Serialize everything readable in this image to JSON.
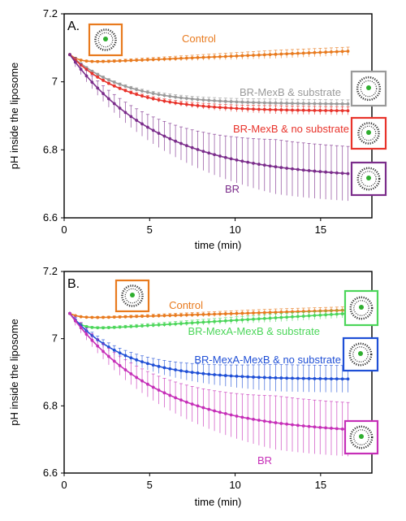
{
  "chart_data": [
    {
      "panel_label": "A.",
      "type": "line",
      "xlabel": "time (min)",
      "ylabel": "pH inside the liposome",
      "xlim": [
        0,
        18
      ],
      "ylim": [
        6.6,
        7.2
      ],
      "xticks": [
        0,
        5,
        10,
        15
      ],
      "yticks": [
        6.6,
        6.8,
        7,
        7.2
      ],
      "x_start": 0.33,
      "x_end": 16.6,
      "start_value": 7.08,
      "series": [
        {
          "name": "Control",
          "color": "#E87A1E",
          "y_min": 7.055,
          "y_end": 7.09,
          "err_end": 0.012,
          "icon": "liposome-icon"
        },
        {
          "name": "BR-MexB & substrate",
          "color": "#9A9A9A",
          "y_end": 6.935,
          "err_end": 0.012,
          "icon": "liposome-icon"
        },
        {
          "name": "BR-MexB & no substrate",
          "color": "#E8332B",
          "y_end": 6.915,
          "err_end": 0.012,
          "icon": "liposome-icon"
        },
        {
          "name": "BR",
          "color": "#7B2D8B",
          "y_end": 6.73,
          "err_end": 0.08,
          "icon": "liposome-icon"
        }
      ]
    },
    {
      "panel_label": "B.",
      "type": "line",
      "xlabel": "time (min)",
      "ylabel": "pH inside the liposome",
      "xlim": [
        0,
        18
      ],
      "ylim": [
        6.6,
        7.2
      ],
      "xticks": [
        0,
        5,
        10,
        15
      ],
      "yticks": [
        6.6,
        6.8,
        7,
        7.2
      ],
      "x_start": 0.33,
      "x_end": 16.6,
      "start_value": 7.075,
      "series": [
        {
          "name": "Control",
          "color": "#E87A1E",
          "y_min": 7.06,
          "y_end": 7.085,
          "err_end": 0.01,
          "icon": "liposome-icon"
        },
        {
          "name": "BR-MexA-MexB & substrate",
          "color": "#4CD65A",
          "y_min": 7.025,
          "y_end": 7.075,
          "err_end": 0.012,
          "icon": "liposome-icon"
        },
        {
          "name": "BR-MexA-MexB & no substrate",
          "color": "#1F4FD6",
          "y_end": 6.88,
          "err_end": 0.04,
          "icon": "liposome-icon"
        },
        {
          "name": "BR",
          "color": "#C62FB8",
          "y_end": 6.73,
          "err_end": 0.08,
          "icon": "liposome-icon"
        }
      ]
    }
  ]
}
